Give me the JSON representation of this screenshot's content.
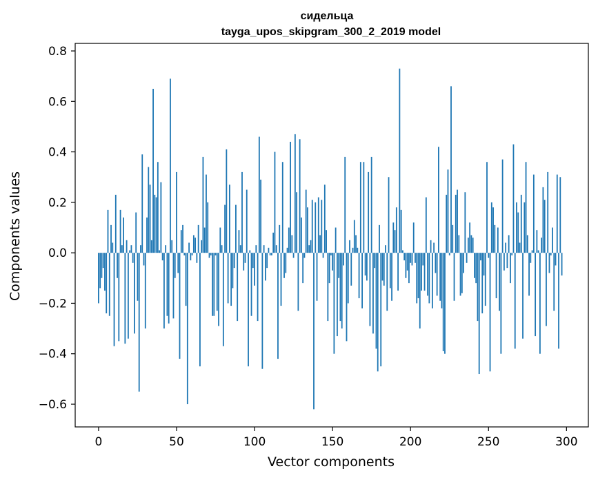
{
  "chart_data": {
    "type": "bar",
    "title_line1": "сидельца",
    "title_line2": "tayga_upos_skipgram_300_2_2019 model",
    "xlabel": "Vector components",
    "ylabel": "Components values",
    "xlim": [
      -15,
      314
    ],
    "ylim": [
      -0.69,
      0.83
    ],
    "x_ticks": [
      0,
      50,
      100,
      150,
      200,
      250,
      300
    ],
    "x_tick_labels": [
      "0",
      "50",
      "100",
      "150",
      "200",
      "250",
      "300"
    ],
    "y_ticks": [
      -0.6,
      -0.4,
      -0.2,
      0.0,
      0.2,
      0.4,
      0.6,
      0.8
    ],
    "y_tick_labels": [
      "−0.6",
      "−0.4",
      "−0.2",
      "0.0",
      "0.2",
      "0.4",
      "0.6",
      "0.8"
    ],
    "bar_color": "#1f77b4",
    "grid": false,
    "legend": "none",
    "values": [
      -0.2,
      -0.14,
      -0.1,
      -0.06,
      -0.15,
      -0.24,
      0.17,
      -0.25,
      0.11,
      0.04,
      -0.37,
      0.23,
      -0.1,
      -0.35,
      0.17,
      0.03,
      0.14,
      -0.36,
      0.05,
      -0.34,
      0.01,
      0.03,
      -0.04,
      -0.32,
      0.16,
      -0.19,
      -0.55,
      0.03,
      0.39,
      -0.05,
      -0.3,
      0.14,
      0.34,
      0.27,
      0.05,
      0.65,
      0.23,
      0.22,
      0.36,
      0.01,
      0.28,
      -0.03,
      -0.3,
      0.03,
      -0.25,
      -0.28,
      0.69,
      0.05,
      -0.26,
      -0.1,
      0.32,
      -0.08,
      -0.42,
      0.09,
      0.11,
      -0.01,
      -0.21,
      -0.6,
      0.04,
      -0.03,
      -0.01,
      0.07,
      0.06,
      -0.04,
      0.11,
      -0.45,
      0.05,
      0.38,
      0.1,
      0.31,
      0.2,
      -0.02,
      -0.01,
      -0.25,
      -0.25,
      -0.01,
      -0.23,
      -0.29,
      0.1,
      0.03,
      -0.37,
      0.19,
      0.41,
      -0.2,
      0.27,
      -0.21,
      -0.14,
      -0.06,
      0.19,
      -0.27,
      0.09,
      0.03,
      0.32,
      -0.07,
      -0.04,
      0.25,
      -0.45,
      0.01,
      -0.25,
      -0.06,
      -0.13,
      0.03,
      -0.27,
      0.46,
      0.29,
      -0.46,
      0.03,
      -0.11,
      -0.06,
      0.02,
      -0.01,
      -0.01,
      0.08,
      0.4,
      0.03,
      -0.42,
      0.11,
      -0.21,
      0.36,
      -0.1,
      -0.08,
      0.02,
      0.1,
      0.44,
      0.07,
      -0.02,
      0.47,
      0.24,
      -0.23,
      0.45,
      0.14,
      -0.12,
      -0.02,
      0.25,
      0.18,
      0.03,
      0.05,
      0.21,
      -0.62,
      0.2,
      -0.19,
      0.22,
      0.07,
      0.21,
      -0.02,
      0.27,
      0.09,
      -0.27,
      -0.12,
      -0.01,
      -0.07,
      -0.4,
      0.1,
      -0.33,
      -0.1,
      -0.27,
      -0.3,
      -0.05,
      0.38,
      -0.35,
      -0.2,
      0.05,
      -0.13,
      0.02,
      0.13,
      0.07,
      0.02,
      -0.18,
      0.36,
      -0.22,
      0.36,
      -0.09,
      -0.11,
      0.32,
      -0.29,
      0.38,
      -0.32,
      -0.06,
      -0.38,
      -0.47,
      0.11,
      -0.45,
      -0.11,
      -0.13,
      0.03,
      -0.23,
      0.3,
      -0.14,
      -0.19,
      0.12,
      0.09,
      0.18,
      -0.15,
      0.73,
      0.17,
      0.01,
      -0.03,
      -0.1,
      -0.07,
      -0.12,
      -0.04,
      -0.05,
      0.12,
      -0.04,
      -0.2,
      -0.18,
      -0.3,
      -0.15,
      -0.05,
      -0.15,
      0.22,
      -0.17,
      -0.2,
      0.05,
      -0.22,
      0.04,
      -0.08,
      -0.17,
      0.42,
      -0.19,
      -0.22,
      -0.39,
      -0.4,
      0.23,
      0.33,
      -0.01,
      0.66,
      0.11,
      -0.19,
      0.23,
      0.25,
      0.07,
      -0.17,
      -0.16,
      -0.08,
      0.24,
      -0.04,
      0.06,
      0.12,
      0.07,
      0.06,
      -0.1,
      -0.12,
      -0.27,
      -0.48,
      -0.03,
      -0.24,
      -0.09,
      -0.21,
      0.36,
      -0.02,
      -0.47,
      0.2,
      0.18,
      0.11,
      -0.18,
      0.1,
      -0.23,
      -0.4,
      0.37,
      -0.07,
      0.04,
      -0.06,
      0.07,
      -0.12,
      -0.01,
      0.43,
      -0.38,
      0.2,
      0.16,
      0.04,
      0.23,
      -0.34,
      0.2,
      0.36,
      0.07,
      -0.17,
      -0.04,
      0.01,
      0.31,
      -0.33,
      0.09,
      0.01,
      -0.4,
      0.06,
      0.26,
      0.21,
      -0.29,
      0.32,
      -0.08,
      -0.01,
      0.1,
      -0.23,
      -0.05,
      0.31,
      -0.38,
      0.3,
      -0.09
    ]
  }
}
